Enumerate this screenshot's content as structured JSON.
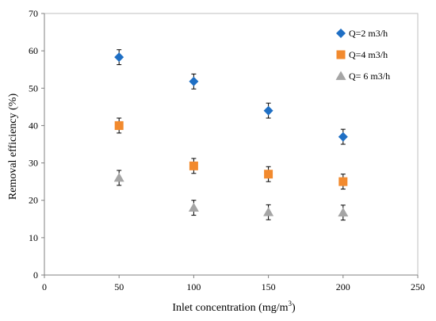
{
  "chart_data": {
    "type": "scatter",
    "xlabel": "Inlet concentration (mg/m",
    "xlabel_sup": "3",
    "xlabel_end": ")",
    "ylabel": "Removal efficiency (%)",
    "xlim": [
      0,
      250
    ],
    "ylim": [
      0,
      70
    ],
    "xticks": [
      0,
      50,
      100,
      150,
      200,
      250
    ],
    "yticks": [
      0,
      10,
      20,
      30,
      40,
      50,
      60,
      70
    ],
    "grid": false,
    "legend_position": "top-right",
    "series": [
      {
        "name": "Q=2 m3/h",
        "marker": "diamond",
        "color": "#1f6fc4",
        "x": [
          50,
          100,
          150,
          200
        ],
        "y": [
          58.3,
          51.8,
          44.0,
          37.0
        ],
        "err": [
          2.0,
          2.0,
          2.0,
          2.0
        ]
      },
      {
        "name": "Q=4 m3/h",
        "marker": "square",
        "color": "#f28a2e",
        "x": [
          50,
          100,
          150,
          200
        ],
        "y": [
          40.0,
          29.2,
          27.0,
          25.0
        ],
        "err": [
          2.0,
          2.0,
          2.0,
          2.0
        ]
      },
      {
        "name": "Q= 6 m3/h",
        "marker": "triangle",
        "color": "#a5a5a5",
        "x": [
          50,
          100,
          150,
          200
        ],
        "y": [
          26.0,
          18.0,
          16.8,
          16.7
        ],
        "err": [
          2.0,
          2.0,
          2.0,
          2.0
        ]
      }
    ]
  }
}
